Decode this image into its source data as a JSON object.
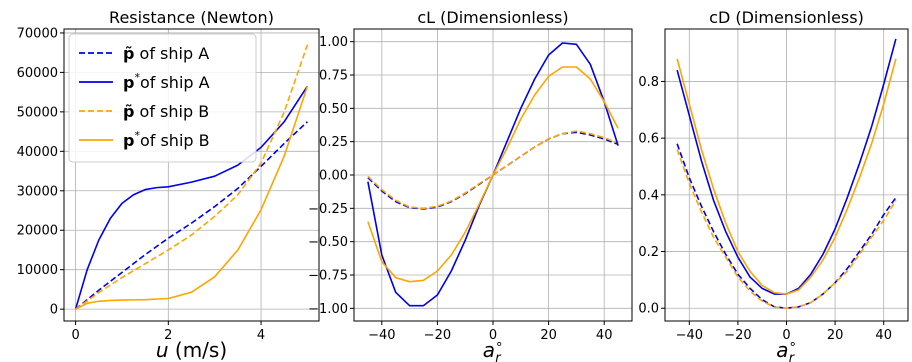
{
  "chart_data": [
    {
      "type": "line",
      "title": "Resistance (Newton)",
      "xlabel_main": "u",
      "xlabel_unit": " (m/s)",
      "ylabel": "",
      "xlim": [
        -0.25,
        5.25
      ],
      "ylim": [
        -3000,
        71000
      ],
      "xticks": [
        0,
        2,
        4
      ],
      "yticks": [
        0,
        10000,
        20000,
        30000,
        40000,
        50000,
        60000,
        70000
      ],
      "grid": true,
      "legend": {
        "placement": "upper-left",
        "entries": [
          {
            "sym": "p̃",
            "text": " of ship A",
            "color": "#0000ee",
            "dash": true
          },
          {
            "sym": "p",
            "sup": "*",
            "text": "of ship A",
            "color": "#0000ee",
            "dash": false
          },
          {
            "sym": "p̃",
            "text": " of ship B",
            "color": "#ffa500",
            "dash": true
          },
          {
            "sym": "p",
            "sup": "*",
            "text": "of ship B",
            "color": "#ffa500",
            "dash": false
          }
        ]
      },
      "series": [
        {
          "color": "#0000ee",
          "dash": true,
          "x": [
            0,
            0.5,
            1,
            1.5,
            2,
            2.5,
            3,
            3.5,
            4,
            4.5,
            5
          ],
          "y": [
            0,
            4800,
            9300,
            13800,
            18000,
            21800,
            26000,
            30600,
            36200,
            42000,
            47500
          ]
        },
        {
          "color": "#0000ee",
          "dash": false,
          "x": [
            0,
            0.25,
            0.5,
            0.75,
            1,
            1.25,
            1.5,
            1.75,
            2,
            2.5,
            3,
            3.5,
            4,
            4.5,
            5
          ],
          "y": [
            0,
            10000,
            17500,
            23000,
            26800,
            29000,
            30300,
            30800,
            31000,
            32200,
            33700,
            36500,
            41000,
            47500,
            56500
          ]
        },
        {
          "color": "#ffa500",
          "dash": true,
          "x": [
            0,
            0.5,
            1,
            1.5,
            2,
            2.5,
            3,
            3.5,
            4,
            4.5,
            5
          ],
          "y": [
            0,
            4200,
            8000,
            11500,
            15000,
            18800,
            23500,
            29000,
            37000,
            50000,
            67000
          ]
        },
        {
          "color": "#ffa500",
          "dash": false,
          "x": [
            0,
            0.25,
            0.5,
            0.75,
            1,
            1.5,
            2,
            2.5,
            3,
            3.5,
            4,
            4.5,
            5
          ],
          "y": [
            0,
            1500,
            2000,
            2200,
            2300,
            2400,
            2700,
            4300,
            8200,
            15000,
            25200,
            38800,
            56500
          ]
        }
      ]
    },
    {
      "type": "line",
      "title": "cL (Dimensionless)",
      "xlabel_main": "a",
      "xlabel_sub": "r",
      "xlabel_sup": "∘",
      "ylabel": "",
      "xlim": [
        -50,
        50
      ],
      "ylim": [
        -1.095,
        1.095
      ],
      "xticks": [
        -40,
        -20,
        0,
        20,
        40
      ],
      "yticks": [
        -1.0,
        -0.75,
        -0.5,
        -0.25,
        0.0,
        0.25,
        0.5,
        0.75,
        1.0
      ],
      "ytick_labels": [
        "−1.00",
        "−0.75",
        "−0.50",
        "−0.25",
        "0.00",
        "0.25",
        "0.50",
        "0.75",
        "1.00"
      ],
      "grid": true,
      "series": [
        {
          "color": "#0000ee",
          "dash": true,
          "x": [
            -45,
            -40,
            -35,
            -30,
            -25,
            -20,
            -15,
            -10,
            -5,
            0,
            5,
            10,
            15,
            20,
            25,
            30,
            35,
            40,
            45
          ],
          "y": [
            -0.02,
            -0.12,
            -0.2,
            -0.245,
            -0.255,
            -0.24,
            -0.2,
            -0.14,
            -0.07,
            0.0,
            0.07,
            0.14,
            0.21,
            0.27,
            0.31,
            0.32,
            0.3,
            0.27,
            0.23
          ]
        },
        {
          "color": "#ffa500",
          "dash": true,
          "x": [
            -45,
            -40,
            -35,
            -30,
            -25,
            -20,
            -15,
            -10,
            -5,
            0,
            5,
            10,
            15,
            20,
            25,
            30,
            35,
            40,
            45
          ],
          "y": [
            -0.01,
            -0.11,
            -0.19,
            -0.24,
            -0.25,
            -0.235,
            -0.195,
            -0.135,
            -0.065,
            0.0,
            0.07,
            0.14,
            0.21,
            0.27,
            0.31,
            0.33,
            0.31,
            0.28,
            0.24
          ]
        },
        {
          "color": "#0000ee",
          "dash": false,
          "x": [
            -45,
            -40,
            -35,
            -30,
            -25,
            -20,
            -15,
            -10,
            -5,
            0,
            5,
            10,
            15,
            20,
            25,
            30,
            35,
            40,
            45
          ],
          "y": [
            -0.05,
            -0.6,
            -0.88,
            -0.98,
            -0.98,
            -0.9,
            -0.72,
            -0.49,
            -0.23,
            0.0,
            0.25,
            0.5,
            0.72,
            0.9,
            0.99,
            0.98,
            0.83,
            0.55,
            0.22
          ]
        },
        {
          "color": "#ffa500",
          "dash": false,
          "x": [
            -45,
            -40,
            -35,
            -30,
            -25,
            -20,
            -15,
            -10,
            -5,
            0,
            5,
            10,
            15,
            20,
            25,
            30,
            35,
            40,
            45
          ],
          "y": [
            -0.35,
            -0.65,
            -0.77,
            -0.8,
            -0.79,
            -0.72,
            -0.6,
            -0.43,
            -0.22,
            0.0,
            0.2,
            0.42,
            0.6,
            0.74,
            0.81,
            0.81,
            0.72,
            0.55,
            0.35
          ]
        }
      ]
    },
    {
      "type": "line",
      "title": "cD (Dimensionless)",
      "xlabel_main": "a",
      "xlabel_sub": "r",
      "xlabel_sup": "∘",
      "ylabel": "",
      "xlim": [
        -50,
        50
      ],
      "ylim": [
        -0.045,
        0.985
      ],
      "xticks": [
        -40,
        -20,
        0,
        20,
        40
      ],
      "xtick_labels": [
        "−40",
        "−20",
        "0",
        "20",
        "40"
      ],
      "yticks": [
        0.0,
        0.2,
        0.4,
        0.6,
        0.8
      ],
      "ytick_labels": [
        "0.0",
        "0.2",
        "0.4",
        "0.6",
        "0.8"
      ],
      "grid": true,
      "series": [
        {
          "color": "#0000ee",
          "dash": true,
          "x": [
            -45,
            -40,
            -35,
            -30,
            -25,
            -20,
            -15,
            -10,
            -5,
            0,
            5,
            10,
            15,
            20,
            25,
            30,
            35,
            40,
            45
          ],
          "y": [
            0.58,
            0.46,
            0.36,
            0.27,
            0.19,
            0.12,
            0.07,
            0.03,
            0.005,
            0.0,
            0.005,
            0.02,
            0.05,
            0.09,
            0.14,
            0.2,
            0.26,
            0.33,
            0.39
          ]
        },
        {
          "color": "#ffa500",
          "dash": true,
          "x": [
            -45,
            -40,
            -35,
            -30,
            -25,
            -20,
            -15,
            -10,
            -5,
            0,
            5,
            10,
            15,
            20,
            25,
            30,
            35,
            40,
            45
          ],
          "y": [
            0.56,
            0.44,
            0.34,
            0.25,
            0.18,
            0.11,
            0.06,
            0.025,
            0.004,
            0.0,
            0.005,
            0.02,
            0.05,
            0.09,
            0.13,
            0.19,
            0.25,
            0.31,
            0.38
          ]
        },
        {
          "color": "#0000ee",
          "dash": false,
          "x": [
            -45,
            -40,
            -35,
            -30,
            -25,
            -20,
            -15,
            -10,
            -5,
            0,
            5,
            10,
            15,
            20,
            25,
            30,
            35,
            40,
            45
          ],
          "y": [
            0.84,
            0.68,
            0.52,
            0.38,
            0.27,
            0.18,
            0.11,
            0.07,
            0.05,
            0.05,
            0.07,
            0.12,
            0.19,
            0.28,
            0.39,
            0.51,
            0.64,
            0.79,
            0.95
          ]
        },
        {
          "color": "#ffa500",
          "dash": false,
          "x": [
            -45,
            -40,
            -35,
            -30,
            -25,
            -20,
            -15,
            -10,
            -5,
            0,
            5,
            10,
            15,
            20,
            25,
            30,
            35,
            40,
            45
          ],
          "y": [
            0.88,
            0.72,
            0.56,
            0.42,
            0.3,
            0.2,
            0.13,
            0.08,
            0.055,
            0.05,
            0.065,
            0.11,
            0.17,
            0.25,
            0.35,
            0.46,
            0.58,
            0.72,
            0.88
          ]
        }
      ]
    }
  ]
}
